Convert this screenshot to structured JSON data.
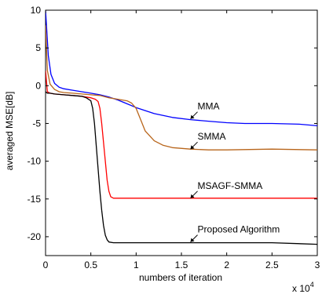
{
  "chart_data": {
    "type": "line",
    "title": "",
    "xlabel": "numbers of iteration",
    "ylabel": "averaged MSE[dB]",
    "x_multiplier": "x 10",
    "x_multiplier_exponent": "4",
    "xlim": [
      0,
      3
    ],
    "ylim": [
      -22.5,
      10
    ],
    "xticks": [
      0,
      0.5,
      1,
      1.5,
      2,
      2.5,
      3
    ],
    "xtick_labels": [
      "0",
      "0.5",
      "1",
      "1.5",
      "2",
      "2.5",
      "3"
    ],
    "yticks": [
      10,
      5,
      0,
      -5,
      -10,
      -15,
      -20
    ],
    "ytick_labels": [
      "10",
      "5",
      "0",
      "-5",
      "-10",
      "-15",
      "-20"
    ],
    "grid": false,
    "legend": "none",
    "series": [
      {
        "name": "MMA",
        "color": "#0000ff",
        "x": [
          0,
          0.03,
          0.06,
          0.1,
          0.15,
          0.2,
          0.3,
          0.4,
          0.5,
          0.6,
          0.7,
          0.8,
          0.9,
          1.0,
          1.2,
          1.4,
          1.6,
          1.8,
          2.0,
          2.2,
          2.5,
          2.8,
          3.0
        ],
        "y": [
          10,
          4.0,
          1.5,
          0.3,
          -0.2,
          -0.4,
          -0.6,
          -0.8,
          -1.0,
          -1.2,
          -1.5,
          -1.9,
          -2.4,
          -2.9,
          -3.7,
          -4.2,
          -4.5,
          -4.7,
          -4.9,
          -5.0,
          -5.0,
          -5.1,
          -5.3
        ]
      },
      {
        "name": "SMMA",
        "color": "#b8651b",
        "x": [
          0,
          0.02,
          0.05,
          0.1,
          0.15,
          0.2,
          0.3,
          0.4,
          0.5,
          0.6,
          0.7,
          0.8,
          0.9,
          0.95,
          1.0,
          1.05,
          1.1,
          1.2,
          1.3,
          1.4,
          1.6,
          1.8,
          2.0,
          2.5,
          3.0
        ],
        "y": [
          8,
          2.0,
          0.2,
          -0.5,
          -0.8,
          -0.9,
          -1.0,
          -1.1,
          -1.2,
          -1.3,
          -1.6,
          -1.8,
          -2.0,
          -2.3,
          -3.0,
          -4.5,
          -6.0,
          -7.3,
          -7.9,
          -8.2,
          -8.4,
          -8.5,
          -8.5,
          -8.4,
          -8.5
        ]
      },
      {
        "name": "MSAGF-SMMA",
        "color": "#ff0000",
        "x": [
          0,
          0.02,
          0.05,
          0.1,
          0.2,
          0.3,
          0.4,
          0.45,
          0.5,
          0.55,
          0.58,
          0.6,
          0.62,
          0.64,
          0.66,
          0.68,
          0.7,
          0.72,
          0.75,
          0.8,
          1.0,
          1.5,
          2.0,
          2.5,
          3.0
        ],
        "y": [
          2,
          -0.8,
          -1.0,
          -1.1,
          -1.2,
          -1.3,
          -1.4,
          -1.5,
          -1.6,
          -1.8,
          -2.1,
          -3.0,
          -5.0,
          -7.5,
          -10.0,
          -12.5,
          -14.0,
          -14.7,
          -14.9,
          -14.9,
          -14.9,
          -14.9,
          -14.9,
          -14.9,
          -14.9
        ]
      },
      {
        "name": "Proposed Algorithm",
        "color": "#000000",
        "x": [
          0,
          0.02,
          0.05,
          0.1,
          0.2,
          0.3,
          0.4,
          0.45,
          0.5,
          0.52,
          0.54,
          0.56,
          0.58,
          0.6,
          0.62,
          0.64,
          0.66,
          0.68,
          0.7,
          0.75,
          0.8,
          1.0,
          1.5,
          2.0,
          2.5,
          3.0
        ],
        "y": [
          -0.8,
          -1.0,
          -1.0,
          -1.1,
          -1.2,
          -1.3,
          -1.4,
          -1.6,
          -2.0,
          -3.0,
          -5.0,
          -8.0,
          -11.0,
          -14.0,
          -16.5,
          -18.5,
          -19.8,
          -20.4,
          -20.7,
          -20.8,
          -20.8,
          -20.8,
          -20.8,
          -20.8,
          -20.8,
          -21.0
        ]
      }
    ],
    "annotations": [
      {
        "text": "MMA",
        "arrow_x": 1.6,
        "arrow_y": -4.4
      },
      {
        "text": "SMMA",
        "arrow_x": 1.6,
        "arrow_y": -8.4
      },
      {
        "text": "MSAGF-SMMA",
        "arrow_x": 1.6,
        "arrow_y": -14.9
      },
      {
        "text": "Proposed Algorithm",
        "arrow_x": 1.6,
        "arrow_y": -20.7
      }
    ]
  }
}
